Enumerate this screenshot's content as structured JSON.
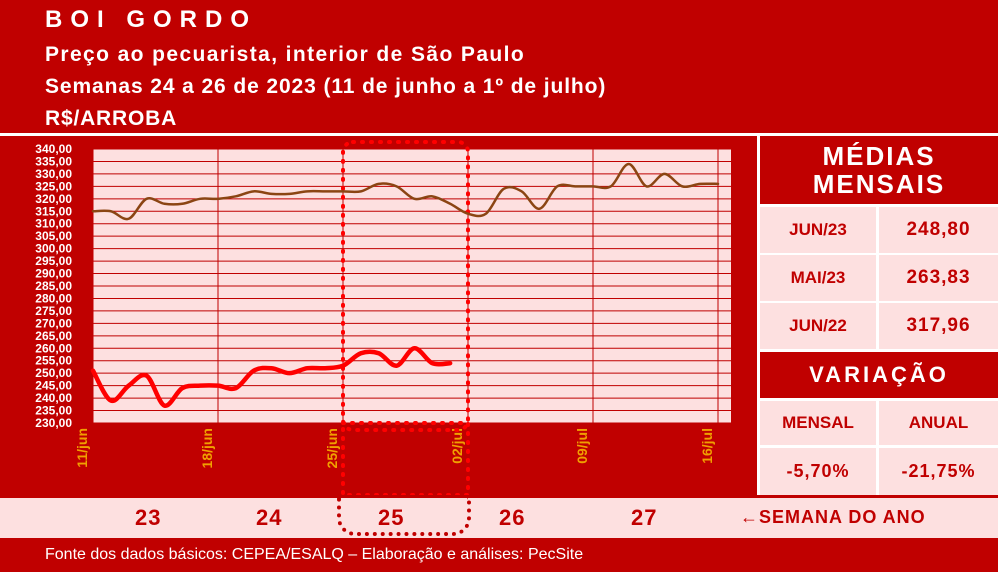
{
  "header": {
    "title": "BOI GORDO",
    "subtitle": "Preço ao pecuarista, interior de São Paulo",
    "weeks_line": "Semanas 24 a 26 de 2023 (11 de junho a 1º de julho)",
    "unit": "R$/ARROBA"
  },
  "chart_data": {
    "type": "line",
    "x_start": "11/jun",
    "x_end": "16/jul",
    "x_tick_labels": [
      "11/jun",
      "18/jun",
      "25/jun",
      "02/jul",
      "09/jul",
      "16/jul"
    ],
    "ylim": [
      230,
      340
    ],
    "y_tick_labels": [
      "230,00",
      "235,00",
      "240,00",
      "245,00",
      "250,00",
      "255,00",
      "260,00",
      "265,00",
      "270,00",
      "275,00",
      "280,00",
      "285,00",
      "290,00",
      "295,00",
      "300,00",
      "305,00",
      "310,00",
      "315,00",
      "320,00",
      "325,00",
      "330,00",
      "335,00",
      "340,00"
    ],
    "grid": true,
    "highlight_range": [
      "25/jun",
      "02/jul"
    ],
    "series": [
      {
        "color": "#8b4513",
        "x": [
          "11/jun",
          "12/jun",
          "13/jun",
          "14/jun",
          "15/jun",
          "16/jun",
          "17/jun",
          "18/jun",
          "19/jun",
          "20/jun",
          "21/jun",
          "22/jun",
          "23/jun",
          "24/jun",
          "25/jun",
          "26/jun",
          "27/jun",
          "28/jun",
          "29/jun",
          "30/jun",
          "01/jul",
          "02/jul",
          "03/jul",
          "04/jul",
          "05/jul",
          "06/jul",
          "07/jul",
          "08/jul",
          "09/jul",
          "10/jul",
          "11/jul",
          "12/jul",
          "13/jul",
          "14/jul",
          "15/jul",
          "16/jul"
        ],
        "values": [
          315,
          315,
          312,
          320,
          318,
          318,
          320,
          320,
          321,
          323,
          322,
          322,
          323,
          323,
          323,
          323,
          326,
          325,
          320,
          321,
          318,
          314,
          314,
          324,
          323,
          316,
          325,
          325,
          325,
          325,
          334,
          325,
          330,
          325,
          326,
          326
        ]
      },
      {
        "color": "#ff0000",
        "x": [
          "11/jun",
          "12/jun",
          "13/jun",
          "14/jun",
          "15/jun",
          "16/jun",
          "17/jun",
          "18/jun",
          "19/jun",
          "20/jun",
          "21/jun",
          "22/jun",
          "23/jun",
          "24/jun",
          "25/jun",
          "26/jun",
          "27/jun",
          "28/jun",
          "29/jun",
          "30/jun",
          "01/jul"
        ],
        "values": [
          251,
          239,
          245,
          249,
          237,
          244,
          245,
          245,
          244,
          251,
          252,
          250,
          252,
          252,
          253,
          258,
          258,
          253,
          260,
          254,
          254
        ]
      }
    ]
  },
  "medias": {
    "title": "MÉDIAS MENSAIS",
    "rows": [
      {
        "label": "JUN/23",
        "value": "248,80"
      },
      {
        "label": "MAI/23",
        "value": "263,83"
      },
      {
        "label": "JUN/22",
        "value": "317,96"
      }
    ]
  },
  "variacao": {
    "title": "VARIAÇÃO",
    "mensal_label": "MENSAL",
    "anual_label": "ANUAL",
    "mensal_value": "-5,70%",
    "anual_value": "-21,75%"
  },
  "weeks": {
    "numbers": [
      "23",
      "24",
      "25",
      "26",
      "27"
    ],
    "label": "SEMANA DO ANO",
    "arrow": "←"
  },
  "footer": {
    "source": "Fonte dos dados básicos: CEPEA/ESALQ – Elaboração e análises: PecSite"
  },
  "colors": {
    "background": "#c00000",
    "plot_background": "#fde0e0",
    "series_1": "#8b4513",
    "series_2": "#ff0000",
    "text_light": "#ffffff"
  }
}
